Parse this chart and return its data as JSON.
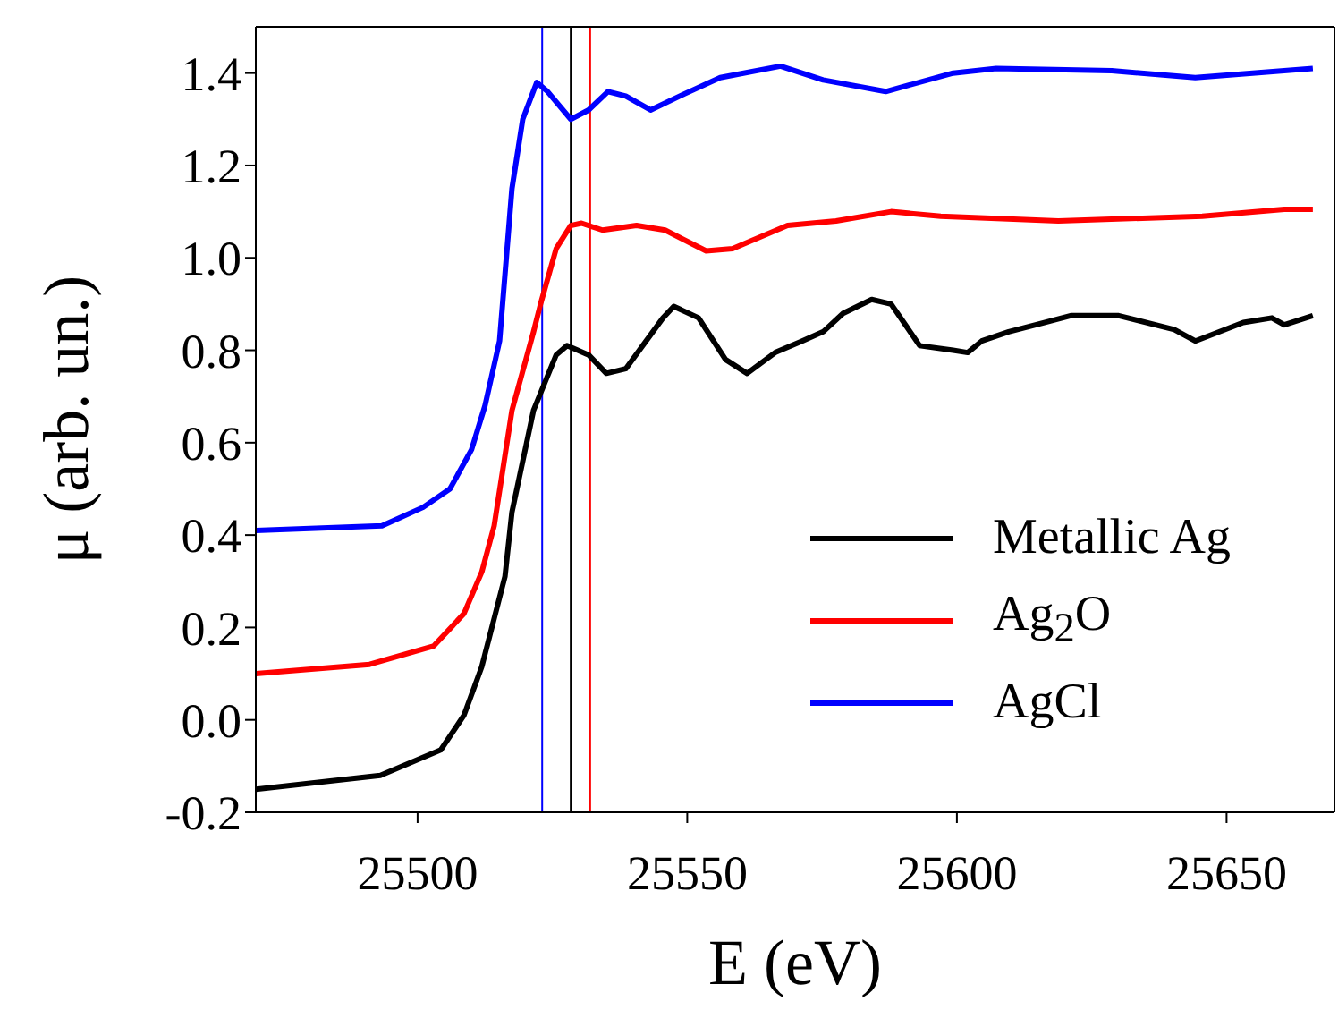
{
  "chart_data": {
    "type": "line",
    "xlabel": "E (eV)",
    "ylabel": "μ (arb. un.)",
    "xlim": [
      25470,
      25670
    ],
    "xticks": [
      25500,
      25550,
      25600,
      25650
    ],
    "ylim": [
      -0.2,
      1.5
    ],
    "yticks": [
      {
        "value": -0.2,
        "label": "-0.2"
      },
      {
        "value": 0,
        "label": "0.0"
      },
      0.2,
      0.4,
      0.6,
      0.8,
      {
        "value": 1,
        "label": "1.0"
      },
      1.2,
      1.4
    ],
    "legend": "bottom right",
    "marker": "none",
    "line_style": "solid",
    "series": [
      {
        "name": "Metallic Ag",
        "color": "#000000",
        "x": [
          25470,
          25493.1,
          25504.3,
          25508.6,
          25511.9,
          25516.2,
          25517.5,
          25521.5,
          25525.7,
          25527.7,
          25531.7,
          25535,
          25538.6,
          25545.5,
          25547.5,
          25552.1,
          25557.1,
          25561.1,
          25566.3,
          25571.3,
          25575.2,
          25578.9,
          25584.2,
          25587.8,
          25593.1,
          25599.3,
          25602,
          25604.6,
          25609.6,
          25616.2,
          25621.1,
          25630,
          25640.3,
          25644.2,
          25653.1,
          25658.4,
          25660.7,
          25666
        ],
        "values": [
          -0.15,
          -0.12,
          -0.065,
          0.01,
          0.115,
          0.31,
          0.45,
          0.67,
          0.79,
          0.81,
          0.79,
          0.75,
          0.76,
          0.87,
          0.895,
          0.87,
          0.78,
          0.75,
          0.795,
          0.82,
          0.84,
          0.88,
          0.91,
          0.9,
          0.81,
          0.8,
          0.795,
          0.82,
          0.84,
          0.86,
          0.875,
          0.875,
          0.845,
          0.82,
          0.86,
          0.87,
          0.855,
          0.875
        ]
      },
      {
        "name": "Ag$_{2}$O",
        "color": "#ff0000",
        "x": [
          25470,
          25491.1,
          25503,
          25508.6,
          25511.9,
          25514.2,
          25517.5,
          25521.5,
          25522.8,
          25525.7,
          25528.4,
          25530.4,
          25534.3,
          25540.6,
          25545.9,
          25553.5,
          25558.4,
          25568.6,
          25577.6,
          25587.8,
          25597,
          25618.8,
          25645.5,
          25660.7,
          25666
        ],
        "values": [
          0.1,
          0.12,
          0.16,
          0.23,
          0.32,
          0.42,
          0.67,
          0.84,
          0.9,
          1.02,
          1.07,
          1.075,
          1.06,
          1.07,
          1.06,
          1.015,
          1.02,
          1.07,
          1.08,
          1.1,
          1.09,
          1.08,
          1.09,
          1.105,
          1.105
        ]
      },
      {
        "name": "AgCl",
        "color": "#0000ff",
        "x": [
          25470,
          25493.4,
          25501,
          25506,
          25510,
          25512.5,
          25515.2,
          25517.5,
          25519.5,
          25522.1,
          25524.1,
          25528.4,
          25531.7,
          25535.3,
          25538.6,
          25543.2,
          25549.5,
          25556.1,
          25567.3,
          25575.2,
          25586.8,
          25599.3,
          25607.3,
          25628.7,
          25644.2,
          25666
        ],
        "values": [
          0.41,
          0.42,
          0.46,
          0.5,
          0.585,
          0.68,
          0.82,
          1.15,
          1.3,
          1.38,
          1.36,
          1.3,
          1.32,
          1.36,
          1.35,
          1.32,
          1.355,
          1.39,
          1.415,
          1.385,
          1.36,
          1.4,
          1.41,
          1.405,
          1.39,
          1.41
        ]
      }
    ],
    "ref_lines": [
      {
        "axis": "x",
        "value": 25523.1,
        "color": "#0000ff"
      },
      {
        "axis": "x",
        "value": 25528.4,
        "color": "#000000"
      },
      {
        "axis": "x",
        "value": 25532,
        "color": "#ff0000"
      }
    ]
  }
}
